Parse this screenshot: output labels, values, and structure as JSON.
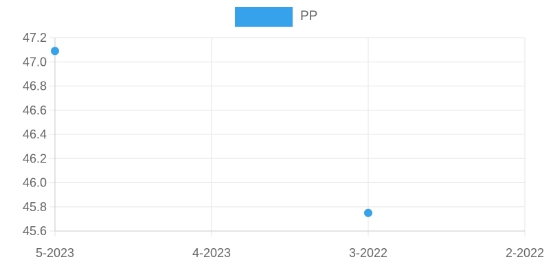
{
  "chart_data": {
    "type": "scatter",
    "categories": [
      "5-2023",
      "4-2023",
      "3-2022",
      "2-2022"
    ],
    "series": [
      {
        "name": "PP",
        "color": "#36A2EB",
        "points": [
          {
            "x": "5-2023",
            "y": 47.09
          },
          {
            "x": "3-2022",
            "y": 45.75
          }
        ]
      }
    ],
    "ylim": [
      45.6,
      47.2
    ],
    "yticks": [
      "47.2",
      "47.0",
      "46.8",
      "46.6",
      "46.4",
      "46.2",
      "46.0",
      "45.8",
      "45.6"
    ],
    "grid": true,
    "legend_position": "top-center"
  }
}
